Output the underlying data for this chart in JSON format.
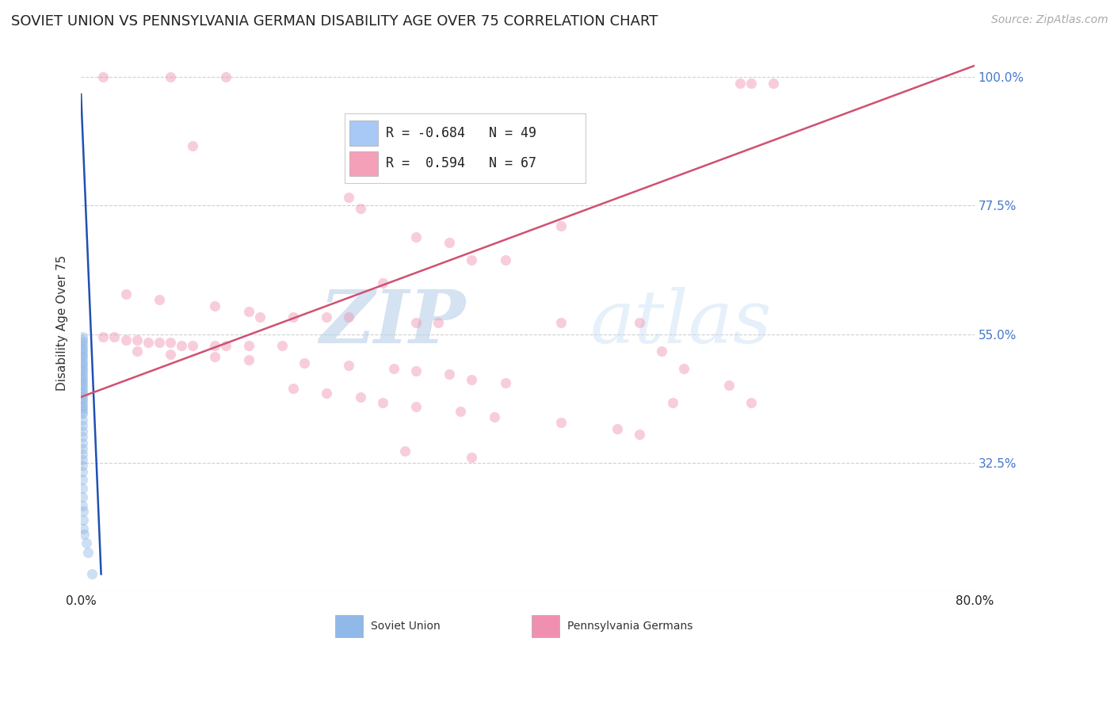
{
  "title": "SOVIET UNION VS PENNSYLVANIA GERMAN DISABILITY AGE OVER 75 CORRELATION CHART",
  "source": "Source: ZipAtlas.com",
  "ylabel": "Disability Age Over 75",
  "y_ticks": [
    0.325,
    0.55,
    0.775,
    1.0
  ],
  "y_tick_labels": [
    "32.5%",
    "55.0%",
    "77.5%",
    "100.0%"
  ],
  "x_min": 0.0,
  "x_max": 0.8,
  "y_min": 0.1,
  "y_max": 1.04,
  "legend_entries": [
    {
      "color": "#a8c8f5",
      "R": "-0.684",
      "N": "49",
      "label": "Soviet Union"
    },
    {
      "color": "#f4a0b8",
      "R": " 0.594",
      "N": "67",
      "label": "Pennsylvania Germans"
    }
  ],
  "blue_trend_x": [
    0.0,
    0.018
  ],
  "blue_trend_y": [
    0.97,
    0.13
  ],
  "pink_trend_x": [
    0.0,
    0.8
  ],
  "pink_trend_y": [
    0.44,
    1.02
  ],
  "watermark_zip": "ZIP",
  "watermark_atlas": "atlas",
  "watermark_color": "#c8dff5",
  "soviet_union_points": [
    [
      0.001,
      0.545
    ],
    [
      0.001,
      0.54
    ],
    [
      0.001,
      0.535
    ],
    [
      0.001,
      0.53
    ],
    [
      0.001,
      0.525
    ],
    [
      0.001,
      0.52
    ],
    [
      0.001,
      0.515
    ],
    [
      0.001,
      0.51
    ],
    [
      0.001,
      0.505
    ],
    [
      0.001,
      0.5
    ],
    [
      0.001,
      0.495
    ],
    [
      0.001,
      0.49
    ],
    [
      0.001,
      0.485
    ],
    [
      0.001,
      0.48
    ],
    [
      0.001,
      0.475
    ],
    [
      0.001,
      0.47
    ],
    [
      0.001,
      0.465
    ],
    [
      0.001,
      0.46
    ],
    [
      0.001,
      0.455
    ],
    [
      0.001,
      0.45
    ],
    [
      0.001,
      0.445
    ],
    [
      0.001,
      0.44
    ],
    [
      0.001,
      0.435
    ],
    [
      0.001,
      0.43
    ],
    [
      0.001,
      0.425
    ],
    [
      0.001,
      0.42
    ],
    [
      0.001,
      0.415
    ],
    [
      0.001,
      0.41
    ],
    [
      0.001,
      0.4
    ],
    [
      0.001,
      0.39
    ],
    [
      0.001,
      0.38
    ],
    [
      0.001,
      0.37
    ],
    [
      0.001,
      0.36
    ],
    [
      0.001,
      0.35
    ],
    [
      0.001,
      0.34
    ],
    [
      0.001,
      0.33
    ],
    [
      0.001,
      0.32
    ],
    [
      0.001,
      0.31
    ],
    [
      0.001,
      0.295
    ],
    [
      0.001,
      0.28
    ],
    [
      0.001,
      0.265
    ],
    [
      0.001,
      0.25
    ],
    [
      0.002,
      0.24
    ],
    [
      0.002,
      0.225
    ],
    [
      0.002,
      0.21
    ],
    [
      0.003,
      0.2
    ],
    [
      0.005,
      0.185
    ],
    [
      0.006,
      0.168
    ],
    [
      0.01,
      0.13
    ]
  ],
  "penn_german_points": [
    [
      0.02,
      1.0
    ],
    [
      0.08,
      1.0
    ],
    [
      0.13,
      1.0
    ],
    [
      0.59,
      0.99
    ],
    [
      0.6,
      0.99
    ],
    [
      0.62,
      0.99
    ],
    [
      0.1,
      0.88
    ],
    [
      0.24,
      0.79
    ],
    [
      0.25,
      0.77
    ],
    [
      0.3,
      0.72
    ],
    [
      0.33,
      0.71
    ],
    [
      0.35,
      0.68
    ],
    [
      0.38,
      0.68
    ],
    [
      0.27,
      0.64
    ],
    [
      0.04,
      0.62
    ],
    [
      0.07,
      0.61
    ],
    [
      0.12,
      0.6
    ],
    [
      0.15,
      0.59
    ],
    [
      0.16,
      0.58
    ],
    [
      0.19,
      0.58
    ],
    [
      0.22,
      0.58
    ],
    [
      0.24,
      0.58
    ],
    [
      0.3,
      0.57
    ],
    [
      0.32,
      0.57
    ],
    [
      0.43,
      0.57
    ],
    [
      0.43,
      0.74
    ],
    [
      0.5,
      0.57
    ],
    [
      0.52,
      0.52
    ],
    [
      0.54,
      0.49
    ],
    [
      0.58,
      0.46
    ],
    [
      0.6,
      0.43
    ],
    [
      0.02,
      0.545
    ],
    [
      0.03,
      0.545
    ],
    [
      0.04,
      0.54
    ],
    [
      0.05,
      0.54
    ],
    [
      0.06,
      0.535
    ],
    [
      0.07,
      0.535
    ],
    [
      0.08,
      0.535
    ],
    [
      0.09,
      0.53
    ],
    [
      0.1,
      0.53
    ],
    [
      0.12,
      0.53
    ],
    [
      0.13,
      0.53
    ],
    [
      0.15,
      0.53
    ],
    [
      0.18,
      0.53
    ],
    [
      0.05,
      0.52
    ],
    [
      0.08,
      0.515
    ],
    [
      0.12,
      0.51
    ],
    [
      0.15,
      0.505
    ],
    [
      0.2,
      0.5
    ],
    [
      0.24,
      0.495
    ],
    [
      0.28,
      0.49
    ],
    [
      0.3,
      0.485
    ],
    [
      0.33,
      0.48
    ],
    [
      0.35,
      0.47
    ],
    [
      0.38,
      0.465
    ],
    [
      0.19,
      0.455
    ],
    [
      0.22,
      0.447
    ],
    [
      0.25,
      0.44
    ],
    [
      0.27,
      0.43
    ],
    [
      0.3,
      0.423
    ],
    [
      0.34,
      0.415
    ],
    [
      0.37,
      0.405
    ],
    [
      0.43,
      0.395
    ],
    [
      0.48,
      0.385
    ],
    [
      0.5,
      0.375
    ],
    [
      0.53,
      0.43
    ],
    [
      0.29,
      0.345
    ],
    [
      0.35,
      0.335
    ]
  ],
  "scatter_size": 90,
  "scatter_alpha": 0.45,
  "blue_scatter_color": "#90b8e8",
  "pink_scatter_color": "#f090b0",
  "blue_line_color": "#2050b0",
  "pink_line_color": "#d05070",
  "grid_color": "#d0d0d0",
  "background_color": "#ffffff",
  "title_fontsize": 13,
  "axis_label_fontsize": 11,
  "tick_fontsize": 11,
  "legend_fontsize": 13,
  "source_fontsize": 10
}
